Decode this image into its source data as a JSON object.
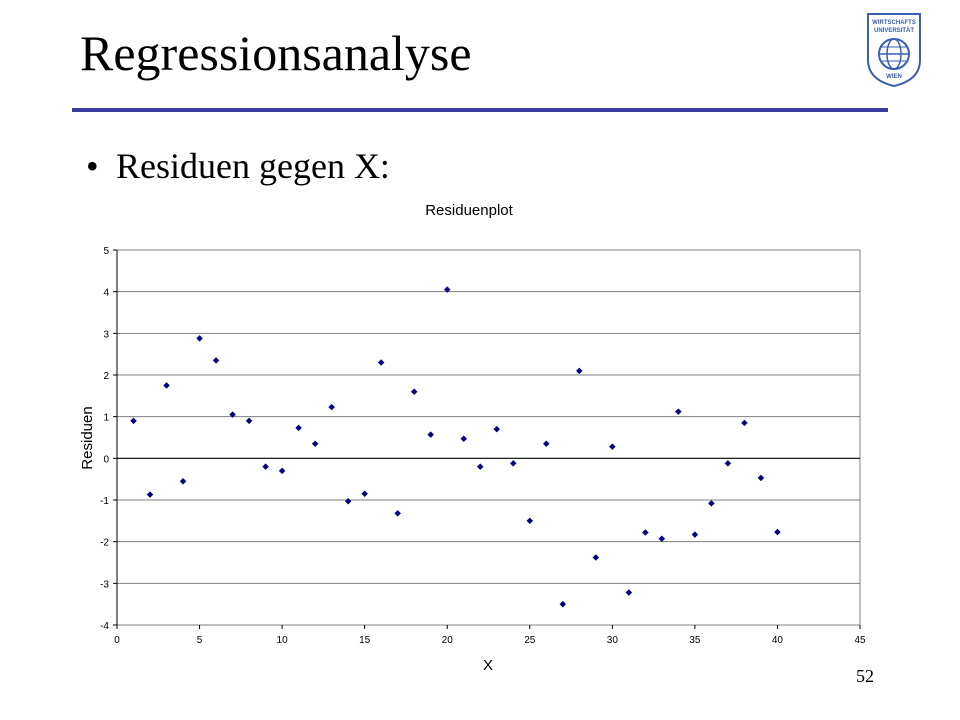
{
  "slide": {
    "title": "Regressionsanalyse",
    "bullet": "Residuen gegen X:",
    "page_number": "52",
    "logo_text_top": "WIRTSCHAFTS",
    "logo_text_mid": "UNIVERSITÄT",
    "logo_text_bottom": "WIEN",
    "accent_color": "#3a3aa0"
  },
  "chart_data": {
    "type": "scatter",
    "title": "Residuenplot",
    "xlabel": "X",
    "ylabel": "Residuen",
    "xlim": [
      0,
      45
    ],
    "ylim": [
      -4,
      5
    ],
    "xticks": [
      0,
      5,
      10,
      15,
      20,
      25,
      30,
      35,
      40,
      45
    ],
    "yticks": [
      -4,
      -3,
      -2,
      -1,
      0,
      1,
      2,
      3,
      4,
      5
    ],
    "grid": "horizontal",
    "marker_color": "#000080",
    "series": [
      {
        "x": [
          1,
          2,
          3,
          4,
          5,
          6,
          7,
          8,
          9,
          10,
          11,
          12,
          13,
          14,
          15,
          16,
          17,
          18,
          19,
          20,
          21,
          22,
          23,
          24,
          25,
          26,
          27,
          28,
          29,
          30,
          31,
          32,
          33,
          34,
          35,
          36,
          37,
          38,
          39,
          40
        ],
        "y": [
          0.9,
          -0.87,
          1.75,
          -0.55,
          2.88,
          2.35,
          1.05,
          0.9,
          -0.2,
          -0.3,
          0.73,
          0.35,
          1.23,
          -1.03,
          -0.85,
          2.3,
          -1.32,
          1.6,
          0.57,
          4.05,
          0.47,
          -0.2,
          0.7,
          -0.12,
          -1.5,
          0.35,
          -3.5,
          2.1,
          -2.38,
          0.28,
          -3.22,
          -1.78,
          -1.93,
          1.12,
          -1.83,
          -1.08,
          -0.12,
          0.85,
          -0.47,
          -1.77
        ]
      }
    ]
  }
}
